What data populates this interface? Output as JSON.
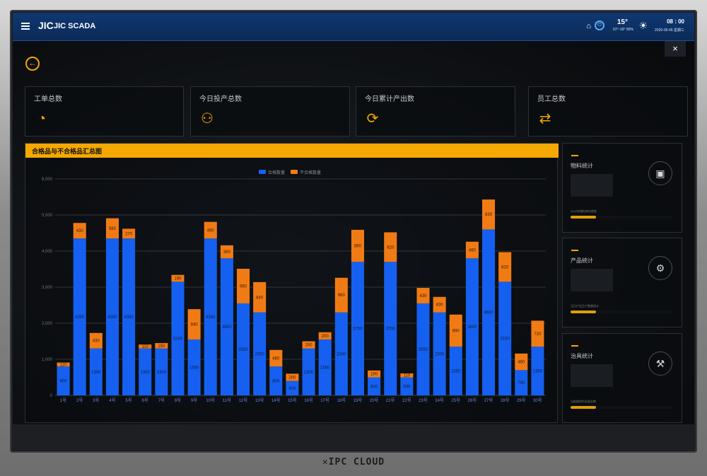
{
  "topbar": {
    "logo": "JIC",
    "title": "JIC SCADA",
    "temperature": "15°",
    "weather_detail": "10°~18°   80%",
    "time": "08 : 00",
    "date": "2020-05-06 星期三"
  },
  "close_label": "×",
  "back_label": "←",
  "stats": [
    {
      "label": "工单总数",
      "icon": "pie-chart-icon",
      "glyph": "◔"
    },
    {
      "label": "今日投产总数",
      "icon": "team-icon",
      "glyph": "⚇"
    },
    {
      "label": "今日累计产出数",
      "icon": "output-cycle-icon",
      "glyph": "⟳"
    },
    {
      "label": "员工总数",
      "icon": "exchange-card-icon",
      "glyph": "⇄"
    }
  ],
  "side_cards": [
    {
      "title": "物料统计",
      "caption": "2022年物料库存趋势",
      "icon": "phone-stats-icon",
      "glyph": "▣",
      "progress": 0.25
    },
    {
      "title": "产品统计",
      "caption": "当日产品生产数量统计",
      "icon": "production-gear-icon",
      "glyph": "⚙",
      "progress": 0.25
    },
    {
      "title": "治具统计",
      "caption": "当前使用中治具总数",
      "icon": "fixture-tool-icon",
      "glyph": "⚒",
      "progress": 0.25
    }
  ],
  "colors": {
    "qualified": "#1560f0",
    "unqualified": "#f07b15",
    "accent": "#f5a800"
  },
  "chart_data": {
    "type": "bar",
    "stacked": true,
    "title": "合格品与不合格品汇总图",
    "legend_position": "top-center",
    "grid": true,
    "ylim": [
      0,
      6000
    ],
    "y_ticks": [
      "0",
      "1,000",
      "2,000",
      "3,000",
      "4,000",
      "5,000",
      "6,000"
    ],
    "categories": [
      "1号",
      "2号",
      "3号",
      "4号",
      "5号",
      "6号",
      "7号",
      "8号",
      "9号",
      "10号",
      "11号",
      "12号",
      "13号",
      "14号",
      "15号",
      "16号",
      "17号",
      "18号",
      "19号",
      "20号",
      "21号",
      "22号",
      "23号",
      "24号",
      "25号",
      "26号",
      "27号",
      "28号",
      "29号",
      "30号"
    ],
    "series": [
      {
        "name": "合格数量",
        "values": [
          800,
          4350,
          1300,
          4350,
          4350,
          1300,
          1300,
          3150,
          1550,
          4350,
          3800,
          2550,
          2300,
          800,
          400,
          1300,
          1550,
          2300,
          3700,
          500,
          3700,
          500,
          2550,
          2300,
          1350,
          3800,
          4600,
          3150,
          700,
          1350
        ]
      },
      {
        "name": "不合格数量",
        "values": [
          110,
          430,
          430,
          560,
          270,
          110,
          150,
          190,
          840,
          460,
          360,
          960,
          840,
          460,
          200,
          200,
          200,
          960,
          890,
          190,
          820,
          110,
          430,
          430,
          890,
          460,
          830,
          820,
          460,
          720
        ]
      }
    ]
  }
}
